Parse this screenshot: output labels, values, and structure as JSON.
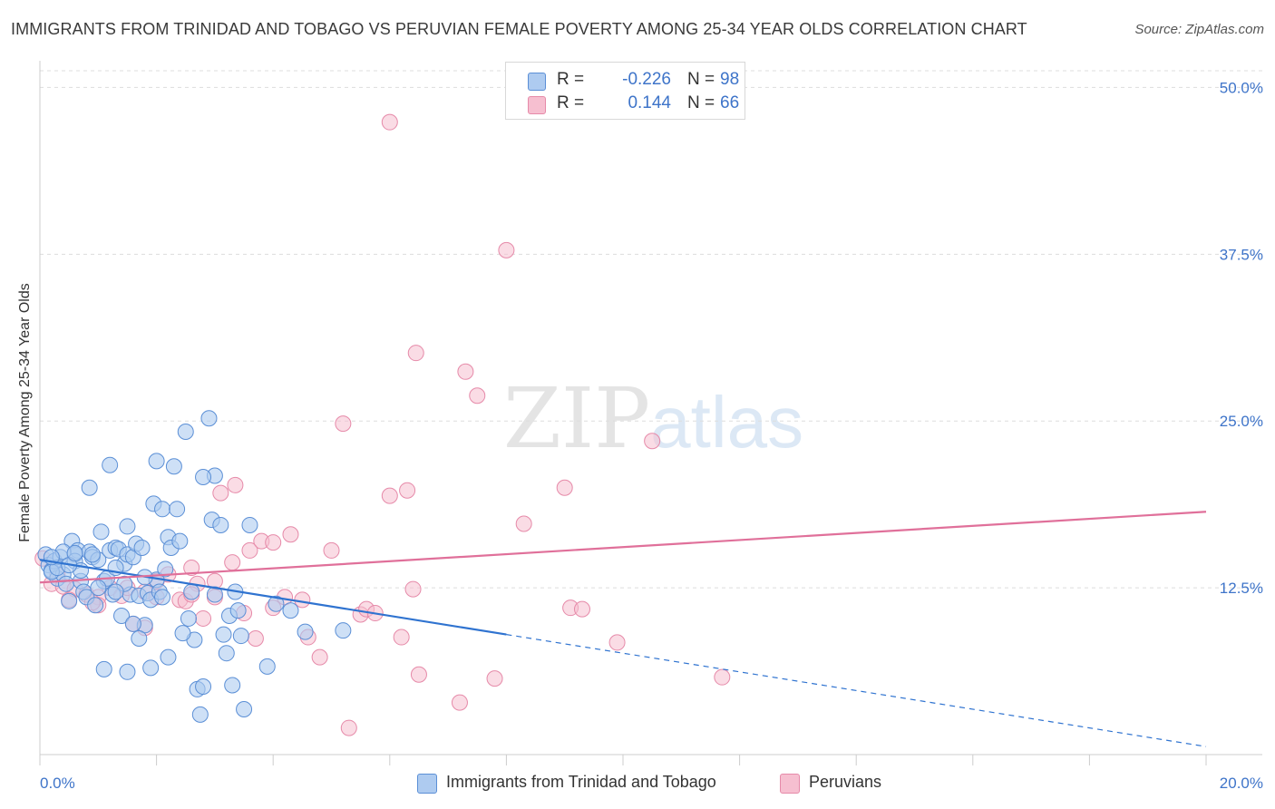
{
  "title": "IMMIGRANTS FROM TRINIDAD AND TOBAGO VS PERUVIAN FEMALE POVERTY AMONG 25-34 YEAR OLDS CORRELATION CHART",
  "source": "Source: ZipAtlas.com",
  "watermark": {
    "zip": "ZIP",
    "atlas": "atlas"
  },
  "colors": {
    "blue_fill": "#aecbf0",
    "blue_stroke": "#5b8fd6",
    "blue_line": "#2f73d0",
    "pink_fill": "#f6bfd0",
    "pink_stroke": "#e68aa9",
    "pink_line": "#e0709a",
    "grid": "#dddddd",
    "tick": "#3e74c9"
  },
  "legend": {
    "r_label": "R =",
    "n_label": "N =",
    "series1": {
      "r": "-0.226",
      "n": "98"
    },
    "series2": {
      "r": "0.144",
      "n": "66"
    }
  },
  "chart_data": {
    "type": "scatter",
    "title": "IMMIGRANTS FROM TRINIDAD AND TOBAGO VS PERUVIAN FEMALE POVERTY AMONG 25-34 YEAR OLDS CORRELATION CHART",
    "xlabel": "",
    "ylabel": "Female Poverty Among 25-34 Year Olds",
    "xlim": [
      0,
      20
    ],
    "ylim": [
      0,
      52
    ],
    "x_tick_labels": [
      "0.0%",
      "20.0%"
    ],
    "y_ticks": [
      12.5,
      25.0,
      37.5,
      50.0
    ],
    "y_tick_labels": [
      "12.5%",
      "25.0%",
      "37.5%",
      "50.0%"
    ],
    "grid": true,
    "legend_position": "top-center",
    "series": [
      {
        "name": "Immigrants from Trinidad and Tobago",
        "r": -0.226,
        "n": 98,
        "trend": {
          "x0": 0.0,
          "y0": 14.6,
          "x1": 8.0,
          "y1": 9.0,
          "dash_to_x": 20.0,
          "dash_to_y": 0.6
        },
        "points": [
          [
            0.1,
            15.0
          ],
          [
            0.15,
            14.2
          ],
          [
            0.2,
            13.8
          ],
          [
            0.25,
            14.5
          ],
          [
            0.3,
            13.2
          ],
          [
            0.35,
            14.8
          ],
          [
            0.4,
            13.5
          ],
          [
            0.45,
            12.8
          ],
          [
            0.5,
            11.5
          ],
          [
            0.55,
            16.0
          ],
          [
            0.6,
            15.0
          ],
          [
            0.65,
            15.3
          ],
          [
            0.7,
            13.0
          ],
          [
            0.75,
            12.2
          ],
          [
            0.8,
            11.8
          ],
          [
            0.85,
            15.2
          ],
          [
            0.9,
            14.8
          ],
          [
            0.95,
            11.2
          ],
          [
            1.0,
            14.6
          ],
          [
            1.05,
            16.7
          ],
          [
            1.1,
            13.0
          ],
          [
            1.15,
            13.2
          ],
          [
            1.2,
            15.3
          ],
          [
            1.25,
            12.0
          ],
          [
            1.3,
            15.5
          ],
          [
            1.35,
            15.4
          ],
          [
            1.4,
            10.4
          ],
          [
            1.45,
            14.3
          ],
          [
            1.5,
            17.1
          ],
          [
            1.5,
            15.0
          ],
          [
            1.55,
            12.0
          ],
          [
            1.6,
            14.8
          ],
          [
            1.65,
            15.8
          ],
          [
            1.7,
            11.9
          ],
          [
            1.75,
            15.5
          ],
          [
            1.8,
            9.7
          ],
          [
            1.85,
            12.1
          ],
          [
            1.9,
            11.6
          ],
          [
            1.95,
            18.8
          ],
          [
            2.0,
            13.1
          ],
          [
            2.05,
            12.2
          ],
          [
            2.1,
            18.4
          ],
          [
            2.15,
            13.9
          ],
          [
            2.2,
            16.3
          ],
          [
            2.25,
            15.5
          ],
          [
            2.3,
            21.6
          ],
          [
            2.4,
            16.0
          ],
          [
            2.5,
            24.2
          ],
          [
            2.55,
            10.2
          ],
          [
            2.6,
            12.2
          ],
          [
            2.65,
            8.6
          ],
          [
            2.7,
            4.9
          ],
          [
            2.75,
            3.0
          ],
          [
            2.8,
            5.1
          ],
          [
            2.9,
            25.2
          ],
          [
            2.95,
            17.6
          ],
          [
            3.0,
            20.9
          ],
          [
            3.1,
            17.2
          ],
          [
            3.15,
            9.0
          ],
          [
            3.2,
            7.6
          ],
          [
            3.25,
            10.4
          ],
          [
            3.3,
            5.2
          ],
          [
            3.35,
            12.2
          ],
          [
            3.4,
            10.8
          ],
          [
            3.45,
            8.9
          ],
          [
            3.5,
            3.4
          ],
          [
            3.6,
            17.2
          ],
          [
            3.9,
            6.6
          ],
          [
            4.05,
            11.3
          ],
          [
            4.3,
            10.8
          ],
          [
            4.55,
            9.2
          ],
          [
            5.2,
            9.3
          ],
          [
            1.3,
            14.0
          ],
          [
            0.85,
            20.0
          ],
          [
            1.6,
            9.8
          ],
          [
            2.2,
            7.3
          ],
          [
            1.9,
            6.5
          ],
          [
            2.45,
            9.1
          ],
          [
            1.2,
            21.7
          ],
          [
            0.2,
            13.7
          ],
          [
            1.1,
            6.4
          ],
          [
            2.0,
            22.0
          ],
          [
            2.35,
            18.4
          ],
          [
            0.6,
            14.5
          ],
          [
            0.4,
            15.2
          ],
          [
            0.3,
            14.0
          ],
          [
            1.0,
            12.5
          ],
          [
            1.45,
            12.8
          ],
          [
            2.8,
            20.8
          ],
          [
            0.7,
            13.8
          ],
          [
            1.8,
            13.3
          ],
          [
            0.5,
            14.2
          ],
          [
            2.1,
            11.8
          ],
          [
            3.0,
            12.0
          ],
          [
            1.7,
            8.7
          ],
          [
            0.9,
            15.0
          ],
          [
            0.2,
            14.8
          ],
          [
            1.3,
            12.2
          ],
          [
            0.6,
            15.1
          ],
          [
            1.5,
            6.2
          ]
        ]
      },
      {
        "name": "Peruvians",
        "r": 0.144,
        "n": 66,
        "trend": {
          "x0": 0.0,
          "y0": 12.9,
          "x1": 20.0,
          "y1": 18.2
        },
        "points": [
          [
            0.05,
            14.7
          ],
          [
            0.2,
            12.8
          ],
          [
            0.4,
            12.6
          ],
          [
            0.6,
            12.4
          ],
          [
            0.8,
            12.0
          ],
          [
            1.0,
            11.8
          ],
          [
            1.2,
            12.5
          ],
          [
            1.4,
            11.9
          ],
          [
            1.5,
            12.5
          ],
          [
            1.6,
            9.8
          ],
          [
            1.8,
            12.2
          ],
          [
            2.0,
            11.8
          ],
          [
            2.2,
            13.5
          ],
          [
            2.4,
            11.6
          ],
          [
            2.5,
            11.5
          ],
          [
            2.6,
            14.0
          ],
          [
            2.7,
            12.8
          ],
          [
            2.8,
            10.2
          ],
          [
            3.0,
            11.8
          ],
          [
            3.1,
            19.6
          ],
          [
            3.3,
            14.4
          ],
          [
            3.35,
            20.2
          ],
          [
            3.5,
            10.6
          ],
          [
            3.6,
            15.3
          ],
          [
            3.7,
            8.7
          ],
          [
            3.8,
            16.0
          ],
          [
            4.0,
            15.9
          ],
          [
            4.2,
            11.8
          ],
          [
            4.3,
            16.5
          ],
          [
            4.5,
            11.6
          ],
          [
            4.6,
            8.8
          ],
          [
            4.8,
            7.3
          ],
          [
            5.0,
            15.3
          ],
          [
            5.2,
            24.8
          ],
          [
            5.3,
            2.0
          ],
          [
            5.5,
            10.5
          ],
          [
            5.6,
            10.9
          ],
          [
            5.75,
            10.6
          ],
          [
            6.0,
            19.4
          ],
          [
            6.2,
            8.8
          ],
          [
            6.3,
            19.8
          ],
          [
            6.4,
            12.4
          ],
          [
            6.5,
            6.0
          ],
          [
            7.2,
            3.9
          ],
          [
            7.3,
            28.7
          ],
          [
            7.5,
            26.9
          ],
          [
            7.8,
            5.7
          ],
          [
            8.0,
            37.8
          ],
          [
            8.3,
            17.3
          ],
          [
            9.0,
            20.0
          ],
          [
            9.1,
            11.0
          ],
          [
            9.3,
            10.9
          ],
          [
            9.9,
            8.4
          ],
          [
            10.5,
            23.5
          ],
          [
            11.7,
            5.8
          ],
          [
            6.0,
            47.4
          ],
          [
            6.45,
            30.1
          ],
          [
            0.5,
            11.6
          ],
          [
            1.0,
            11.2
          ],
          [
            2.0,
            13.0
          ],
          [
            3.0,
            13.0
          ],
          [
            4.0,
            11.0
          ],
          [
            0.3,
            13.5
          ],
          [
            1.8,
            9.5
          ],
          [
            2.6,
            12.0
          ],
          [
            0.9,
            11.4
          ]
        ]
      }
    ]
  },
  "bottom_legend": {
    "item1": "Immigrants from Trinidad and Tobago",
    "item2": "Peruvians"
  }
}
